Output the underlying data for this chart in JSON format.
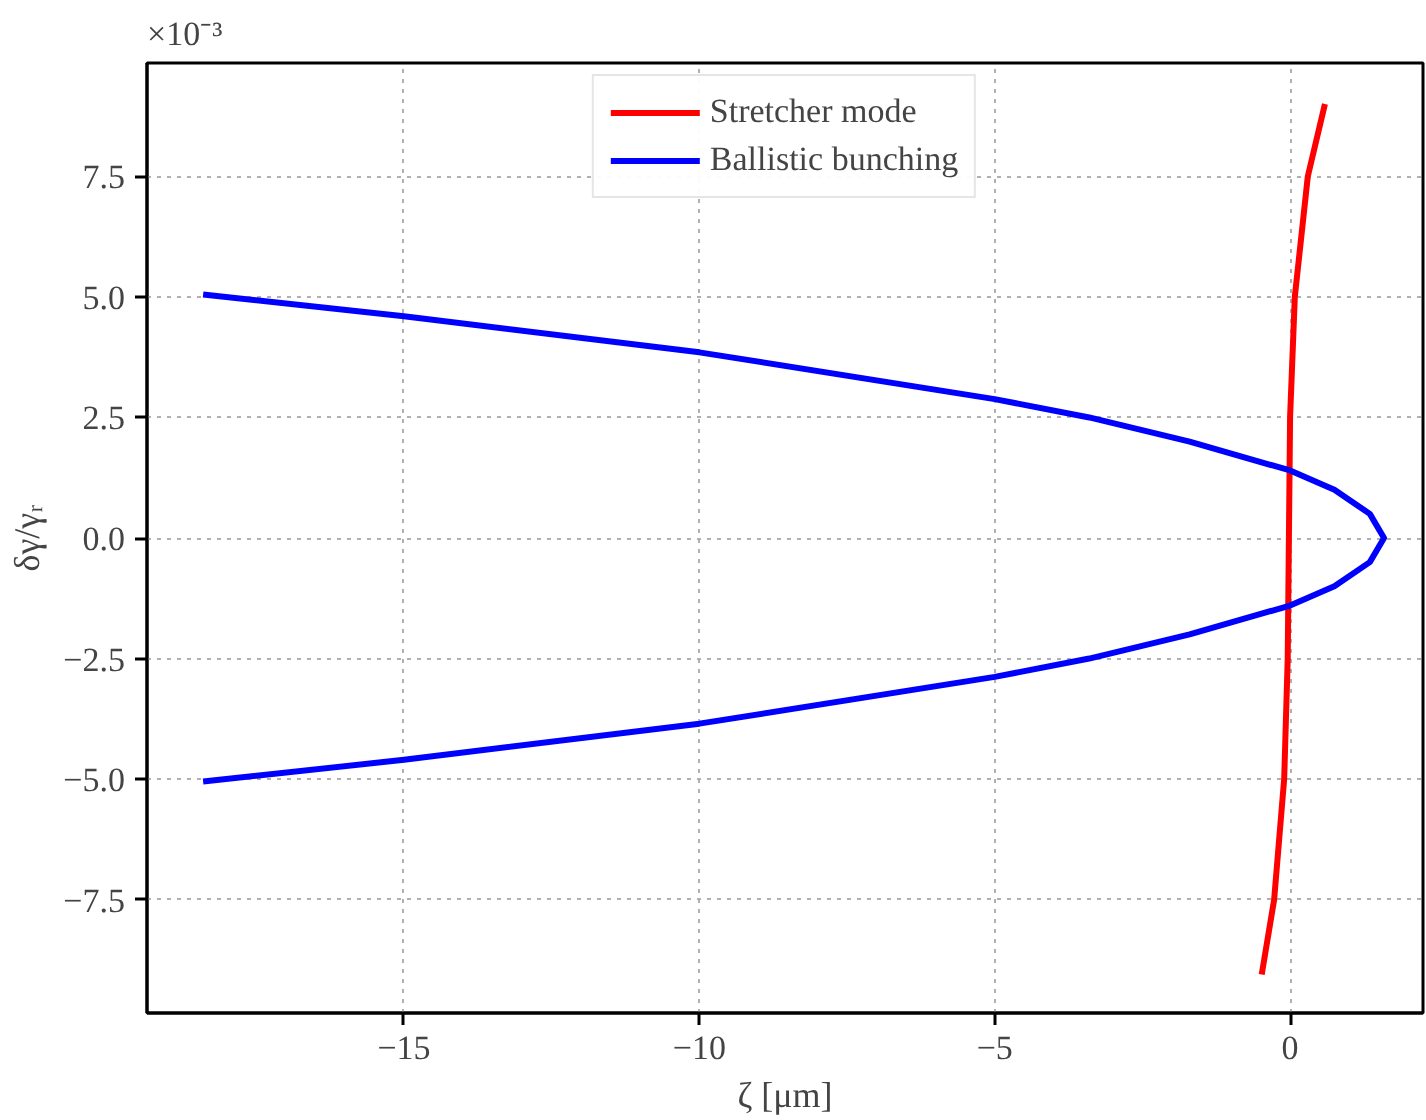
{
  "chart_data": {
    "type": "line",
    "xlabel": "ζ [μm]",
    "ylabel": "δγ/γᵣ",
    "annotations": [
      "×10⁻³"
    ],
    "xlim": [
      -19.35,
      2.25
    ],
    "ylim": [
      -9.85,
      9.85
    ],
    "xticks": [
      {
        "value": -15,
        "label": "−15"
      },
      {
        "value": -10,
        "label": "−10"
      },
      {
        "value": -5,
        "label": "−5"
      },
      0
    ],
    "yticks": [
      {
        "value": -7.5,
        "label": "−7.5"
      },
      {
        "value": -5,
        "label": "−5.0"
      },
      {
        "value": -2.5,
        "label": "−2.5"
      },
      {
        "value": 0,
        "label": "0.0"
      },
      2.5,
      {
        "value": 5,
        "label": "5.0"
      },
      7.5
    ],
    "grid": true,
    "legend": "top",
    "line_style": "solid",
    "marker": "none",
    "series": [
      {
        "name": "Stretcher mode",
        "color": "#ff0000",
        "x": [
          -0.48,
          -0.27,
          -0.1,
          -0.04,
          -0.02,
          0.0,
          0.08,
          0.3,
          0.59
        ],
        "values": [
          -9.05,
          -7.5,
          -5,
          -2.5,
          0,
          2.5,
          5,
          7.5,
          9.0
        ]
      },
      {
        "name": "Ballistic bunching",
        "color": "#0000ff",
        "x": [
          -18.4,
          -15,
          -10,
          -5,
          -3.4,
          -1.7,
          0,
          0.75,
          1.35,
          1.59,
          1.35,
          0.75,
          0,
          -1.7,
          -3.4,
          -5,
          -10,
          -15,
          -18.4
        ],
        "values": [
          5.05,
          4.6,
          3.85,
          2.88,
          2.5,
          2.0,
          1.4,
          1.0,
          0.5,
          0,
          -0.5,
          -1.0,
          -1.4,
          -2.0,
          -2.5,
          -2.88,
          -3.85,
          -4.6,
          -5.05
        ]
      }
    ]
  }
}
